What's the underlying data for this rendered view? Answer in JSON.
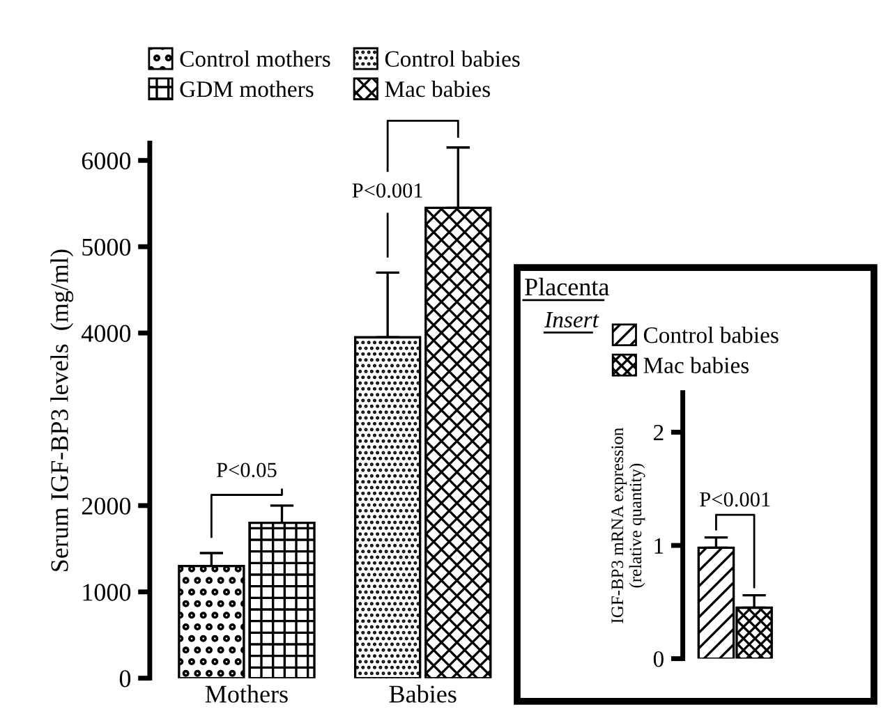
{
  "chart_data": [
    {
      "type": "bar",
      "ylabel": "Serum IGF-BP3 levels  (mg/ml)",
      "categories": [
        "Mothers",
        "Babies"
      ],
      "series": [
        {
          "name": "Control mothers",
          "color": "#000000",
          "values": [
            1300,
            null
          ],
          "errors": [
            [
              1300,
              1450
            ],
            null
          ]
        },
        {
          "name": "GDM mothers",
          "color": "#000000",
          "values": [
            1800,
            null
          ],
          "errors": [
            [
              1800,
              2000
            ],
            null
          ]
        },
        {
          "name": "Control babies",
          "color": "#000000",
          "values": [
            null,
            3950
          ],
          "errors": [
            null,
            [
              3950,
              4700
            ]
          ]
        },
        {
          "name": "Mac babies",
          "color": "#000000",
          "values": [
            null,
            5450
          ],
          "errors": [
            null,
            [
              5450,
              6150
            ]
          ]
        }
      ],
      "ylim": [
        0,
        6200
      ],
      "yticks": [
        0,
        1000,
        2000,
        4000,
        5000,
        6000
      ],
      "grid": false,
      "legend": "top",
      "annotations": [
        "P<0.05",
        "P<0.001"
      ]
    },
    {
      "type": "bar",
      "title": "Placenta",
      "subtitle": "Insert",
      "ylabel": "IGF-BP3 mRNA expression\n(relative quantity)",
      "categories": [
        null
      ],
      "series": [
        {
          "name": "Control babies",
          "color": "#000000",
          "values": [
            0.98
          ],
          "errors": [
            [
              0.98,
              1.07
            ]
          ]
        },
        {
          "name": "Mac babies",
          "color": "#000000",
          "values": [
            0.45
          ],
          "errors": [
            [
              0.45,
              0.56
            ]
          ]
        }
      ],
      "ylim": [
        0,
        2.35
      ],
      "yticks": [
        0,
        1,
        2
      ],
      "grid": false,
      "legend": "top left",
      "annotations": [
        "P<0.001"
      ]
    }
  ]
}
